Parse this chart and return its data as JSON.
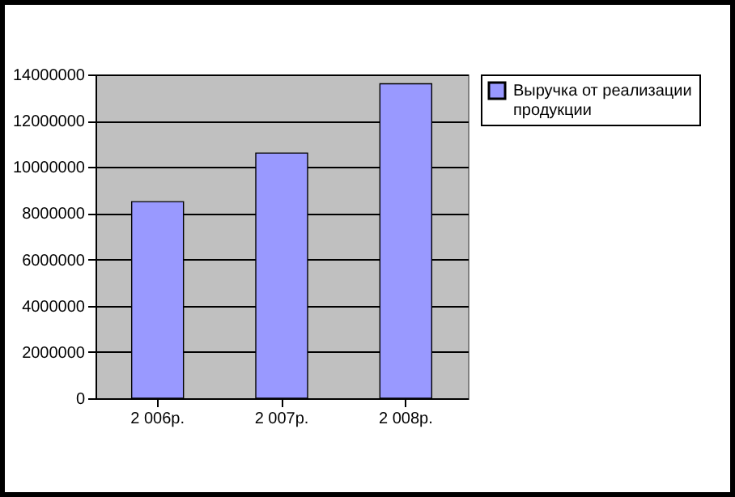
{
  "chart_data": {
    "type": "bar",
    "categories": [
      "2 006р.",
      "2 007р.",
      "2 008р."
    ],
    "series": [
      {
        "name": "Выручка от реализации продукции",
        "color": "#9999ff",
        "values": [
          8500000,
          10600000,
          13600000
        ]
      }
    ],
    "ylim": [
      0,
      14000000
    ],
    "yticks": [
      0,
      2000000,
      4000000,
      6000000,
      8000000,
      10000000,
      12000000,
      14000000
    ],
    "grid": "y",
    "legend": "right"
  }
}
